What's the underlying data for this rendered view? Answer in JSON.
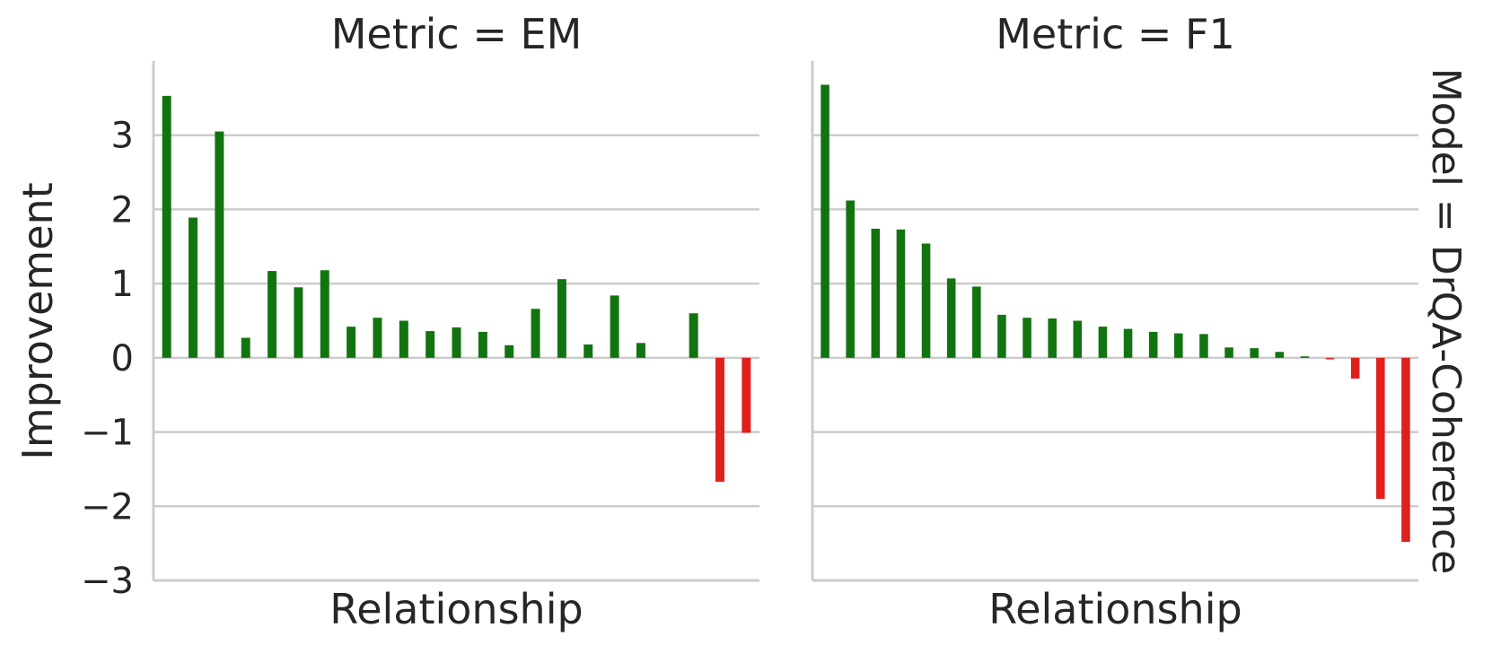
{
  "figure": {
    "ylabel": "Improvement",
    "row_label": "Model = DrQA-Coherence",
    "colors": {
      "positive": "#127411",
      "negative": "#e0201f",
      "grid": "#cccccc",
      "text": "#262626"
    }
  },
  "chart_data": [
    {
      "type": "bar",
      "title": "Metric = EM",
      "xlabel": "Relationship",
      "ylabel": "Improvement",
      "ylim": [
        -3,
        4
      ],
      "yticks": [
        -3,
        -2,
        -1,
        0,
        1,
        2,
        3
      ],
      "ytick_labels": [
        "−3",
        "−2",
        "−1",
        "0",
        "1",
        "2",
        "3"
      ],
      "grid": true,
      "values": [
        3.53,
        1.89,
        3.05,
        0.27,
        1.17,
        0.95,
        1.18,
        0.42,
        0.54,
        0.5,
        0.36,
        0.41,
        0.35,
        0.17,
        0.66,
        1.06,
        0.18,
        0.84,
        0.2,
        0.0,
        0.6,
        -1.67,
        -1.01
      ]
    },
    {
      "type": "bar",
      "title": "Metric = F1",
      "xlabel": "Relationship",
      "ylabel": "Improvement",
      "ylim": [
        -3,
        4
      ],
      "yticks": [
        -3,
        -2,
        -1,
        0,
        1,
        2,
        3
      ],
      "ytick_labels": [
        "−3",
        "−2",
        "−1",
        "0",
        "1",
        "2",
        "3"
      ],
      "grid": true,
      "values": [
        3.68,
        2.12,
        1.74,
        1.73,
        1.54,
        1.07,
        0.96,
        0.58,
        0.54,
        0.53,
        0.5,
        0.42,
        0.39,
        0.35,
        0.33,
        0.32,
        0.14,
        0.13,
        0.08,
        0.02,
        -0.02,
        -0.28,
        -1.9,
        -2.48
      ]
    }
  ]
}
